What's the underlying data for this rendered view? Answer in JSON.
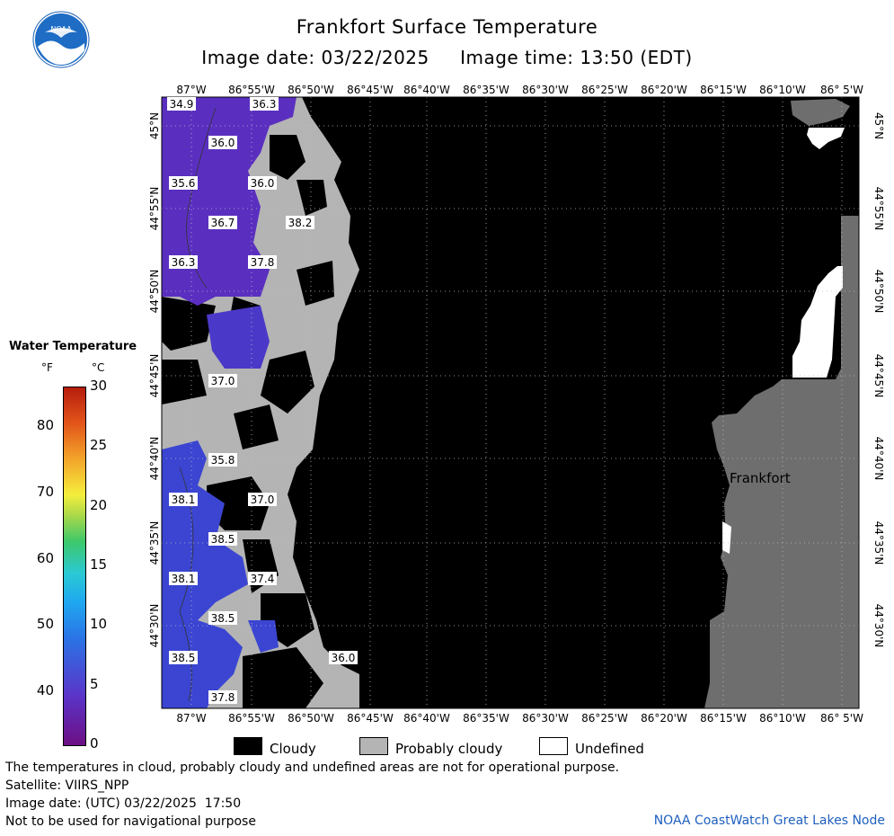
{
  "header": {
    "title": "Frankfort Surface Temperature",
    "image_date": "Image date: 03/22/2025",
    "image_time": "Image time: 13:50 (EDT)",
    "logo_text": "NOAA"
  },
  "map": {
    "lon_labels": [
      "87°W",
      "86°55'W",
      "86°50'W",
      "86°45'W",
      "86°40'W",
      "86°35'W",
      "86°30'W",
      "86°25'W",
      "86°20'W",
      "86°15'W",
      "86°10'W",
      "86° 5'W"
    ],
    "lat_labels": [
      "45°N",
      "44°55'N",
      "44°50'N",
      "44°45'N",
      "44°40'N",
      "44°35'N",
      "44°30'N"
    ],
    "place_label": "Frankfort",
    "temperature_labels": [
      "34.9",
      "36.3",
      "36.0",
      "35.6",
      "36.0",
      "36.7",
      "38.2",
      "36.3",
      "37.8",
      "37.0",
      "35.8",
      "38.1",
      "37.0",
      "38.5",
      "38.1",
      "37.4",
      "38.5",
      "38.5",
      "36.0",
      "37.8"
    ],
    "colors": {
      "cloudy": "#000000",
      "probably_cloudy": "#b4b4b4",
      "land": "#6e6e6e",
      "undefined": "#ffffff",
      "cold_water": "#5a2fc0",
      "water": "#3b45d2"
    }
  },
  "colorbar": {
    "title": "Water Temperature",
    "unit_f": "°F",
    "unit_c": "°C",
    "f_ticks": [
      "80",
      "70",
      "60",
      "50",
      "40"
    ],
    "c_ticks": [
      "30",
      "25",
      "20",
      "15",
      "10",
      "5",
      "0"
    ],
    "range_c": [
      0,
      30
    ]
  },
  "legend": {
    "cloudy": "Cloudy",
    "probably_cloudy": "Probably cloudy",
    "undefined": "Undefined"
  },
  "footer": {
    "note": "The temperatures in cloud, probably cloudy and undefined areas are not for operational purpose.",
    "satellite": "Satellite: VIIRS_NPP",
    "image_date_utc": "Image date: (UTC) 03/22/2025  17:50",
    "nav_warning": "Not to be used for navigational purpose",
    "credit": "NOAA CoastWatch Great Lakes Node"
  }
}
